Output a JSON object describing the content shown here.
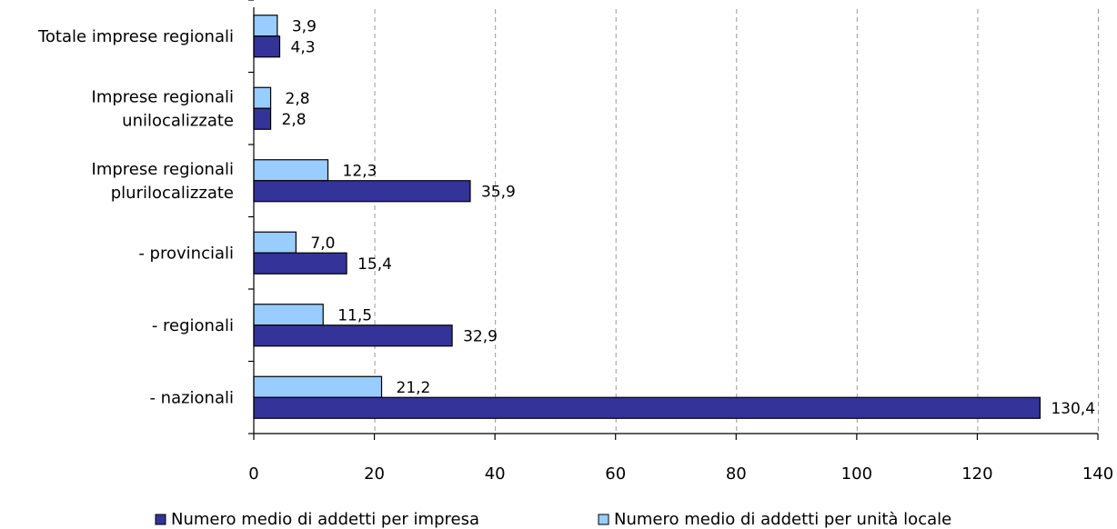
{
  "chart_data": {
    "type": "bar",
    "orientation": "horizontal",
    "categories": [
      [
        "Totale imprese regionali"
      ],
      [
        "Imprese regionali",
        "unilocalizzate"
      ],
      [
        "Imprese regionali",
        "plurilocalizzate"
      ],
      [
        "- provinciali"
      ],
      [
        "- regionali"
      ],
      [
        "- nazionali"
      ]
    ],
    "series": [
      {
        "name": "Numero medio di addetti per unità locale",
        "color": "#99ccff",
        "values": [
          3.9,
          2.8,
          12.3,
          7.0,
          11.5,
          21.2
        ],
        "labels": [
          "3,9",
          "2,8",
          "12,3",
          "7,0",
          "11,5",
          "21,2"
        ]
      },
      {
        "name": "Numero medio di addetti per impresa",
        "color": "#333399",
        "values": [
          4.3,
          2.8,
          35.9,
          15.4,
          32.9,
          130.4
        ],
        "labels": [
          "4,3",
          "2,8",
          "35,9",
          "15,4",
          "32,9",
          "130,4"
        ]
      }
    ],
    "xlim": [
      0,
      140
    ],
    "ticks": [
      "0",
      "20",
      "40",
      "60",
      "80",
      "100",
      "120",
      "140"
    ],
    "tick_values": [
      0,
      20,
      40,
      60,
      80,
      100,
      120,
      140
    ],
    "grid": "vertical dashed",
    "legend": {
      "position": "bottom",
      "order": [
        "Numero medio di addetti per impresa",
        "Numero medio di addetti per unità locale"
      ]
    }
  }
}
